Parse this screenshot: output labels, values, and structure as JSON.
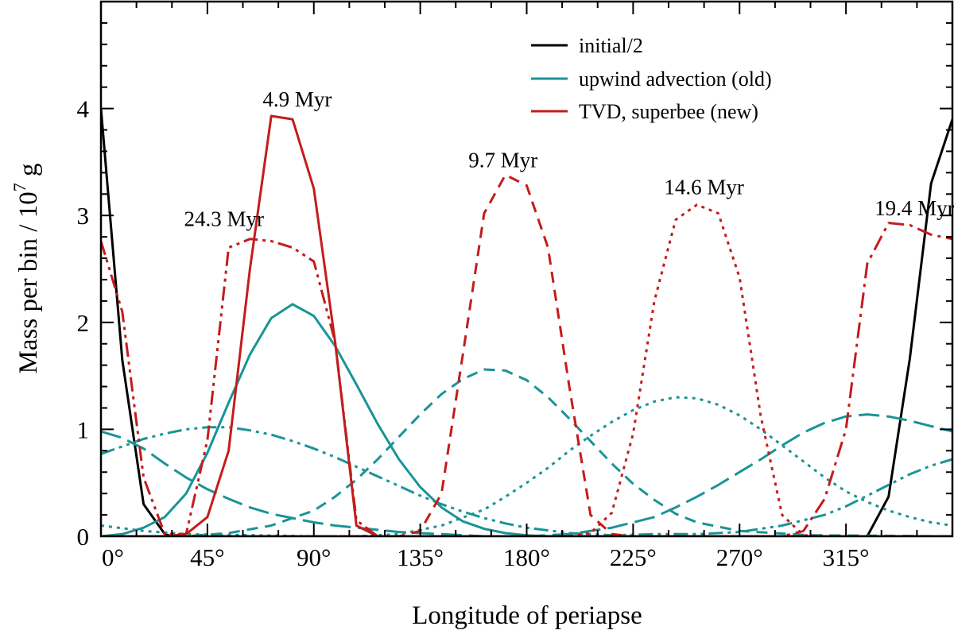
{
  "chart_data": {
    "type": "line",
    "xlabel": "Longitude of periapse",
    "ylabel": "Mass per bin / 10",
    "ylabel_exp": "7",
    "ylabel_unit": " g",
    "xlim": [
      0,
      360
    ],
    "ylim": [
      0,
      5
    ],
    "xticks": [
      0,
      45,
      90,
      135,
      180,
      225,
      270,
      315
    ],
    "xtick_labels": [
      "0°",
      "45°",
      "90°",
      "135°",
      "180°",
      "225°",
      "270°",
      "315°"
    ],
    "yticks": [
      0,
      1,
      2,
      3,
      4
    ],
    "ytick_labels": [
      "0",
      "1",
      "2",
      "3",
      "4"
    ],
    "legend": [
      {
        "label": "initial/2",
        "color": "#000000"
      },
      {
        "label": "upwind advection (old)",
        "color": "#1a9496"
      },
      {
        "label": "TVD, superbee (new)",
        "color": "#c41c1c"
      }
    ],
    "annotations": [
      {
        "text": "4.9 Myr",
        "x": 83,
        "y": 4.02
      },
      {
        "text": "9.7 Myr",
        "x": 170,
        "y": 3.45
      },
      {
        "text": "14.6 Myr",
        "x": 255,
        "y": 3.2
      },
      {
        "text": "19.4 Myr",
        "x": 344,
        "y": 3.0
      },
      {
        "text": "24.3 Myr",
        "x": 52,
        "y": 2.9
      }
    ],
    "series": [
      {
        "name": "initial/2 (start)",
        "group": "initial/2",
        "color": "#000000",
        "dash": "solid",
        "x": [
          0,
          9,
          18,
          27,
          30,
          36
        ],
        "y": [
          4.0,
          1.65,
          0.3,
          0.02,
          0,
          0
        ]
      },
      {
        "name": "initial/2 (end)",
        "group": "initial/2",
        "color": "#000000",
        "dash": "solid",
        "x": [
          315,
          324,
          333,
          342,
          351,
          360
        ],
        "y": [
          0,
          0,
          0.37,
          1.66,
          3.3,
          3.9
        ]
      },
      {
        "name": "upwind 4.9 Myr",
        "group": "upwind advection (old)",
        "color": "#1a9496",
        "dash": "solid",
        "x": [
          0,
          9,
          18,
          27,
          36,
          45,
          54,
          63,
          72,
          81,
          90,
          99,
          108,
          117,
          126,
          135,
          144,
          153,
          162,
          171,
          180,
          189,
          198,
          207,
          216,
          225
        ],
        "y": [
          0,
          0.02,
          0.08,
          0.18,
          0.4,
          0.78,
          1.25,
          1.7,
          2.04,
          2.17,
          2.06,
          1.78,
          1.42,
          1.05,
          0.72,
          0.46,
          0.27,
          0.14,
          0.07,
          0.03,
          0.01,
          0,
          0,
          0,
          0,
          0
        ]
      },
      {
        "name": "upwind 9.7 Myr",
        "group": "upwind advection (old)",
        "color": "#1a9496",
        "dash": "dashed",
        "x": [
          0,
          36,
          54,
          72,
          90,
          99,
          108,
          117,
          126,
          135,
          144,
          153,
          162,
          171,
          180,
          189,
          198,
          207,
          216,
          225,
          234,
          243,
          252,
          270,
          300,
          360
        ],
        "y": [
          0,
          0,
          0.03,
          0.1,
          0.24,
          0.37,
          0.53,
          0.72,
          0.93,
          1.14,
          1.33,
          1.47,
          1.56,
          1.55,
          1.46,
          1.3,
          1.1,
          0.89,
          0.68,
          0.49,
          0.34,
          0.21,
          0.13,
          0.05,
          0.01,
          0
        ]
      },
      {
        "name": "upwind 14.6 Myr",
        "group": "upwind advection (old)",
        "color": "#1a9496",
        "dash": "dotted",
        "x": [
          0,
          18,
          36,
          90,
          108,
          126,
          144,
          162,
          171,
          180,
          189,
          198,
          207,
          216,
          225,
          234,
          243,
          252,
          261,
          270,
          279,
          288,
          297,
          306,
          315,
          324,
          333,
          342,
          351,
          360
        ],
        "y": [
          0.1,
          0.05,
          0.02,
          0,
          0,
          0.02,
          0.1,
          0.25,
          0.37,
          0.5,
          0.64,
          0.8,
          0.94,
          1.07,
          1.18,
          1.26,
          1.3,
          1.29,
          1.23,
          1.13,
          1.0,
          0.85,
          0.7,
          0.55,
          0.42,
          0.32,
          0.24,
          0.18,
          0.13,
          0.1
        ]
      },
      {
        "name": "upwind 19.4 Myr",
        "group": "upwind advection (old)",
        "color": "#1a9496",
        "dash": "longdash",
        "x": [
          0,
          9,
          18,
          27,
          36,
          45,
          54,
          63,
          72,
          81,
          90,
          99,
          108,
          117,
          126,
          135,
          144,
          162,
          180,
          198,
          216,
          234,
          243,
          252,
          261,
          270,
          279,
          288,
          297,
          306,
          315,
          324,
          333,
          342,
          351,
          360
        ],
        "y": [
          0.98,
          0.92,
          0.82,
          0.68,
          0.55,
          0.44,
          0.35,
          0.27,
          0.21,
          0.17,
          0.13,
          0.1,
          0.08,
          0.06,
          0.04,
          0.03,
          0.02,
          0,
          0,
          0.02,
          0.08,
          0.18,
          0.27,
          0.37,
          0.48,
          0.6,
          0.72,
          0.85,
          0.97,
          1.06,
          1.12,
          1.14,
          1.12,
          1.08,
          1.03,
          0.98
        ]
      },
      {
        "name": "upwind 24.3 Myr",
        "group": "upwind advection (old)",
        "color": "#1a9496",
        "dash": "dashdotdot",
        "x": [
          0,
          9,
          18,
          27,
          36,
          45,
          54,
          63,
          72,
          81,
          90,
          99,
          108,
          117,
          126,
          135,
          144,
          153,
          162,
          171,
          180,
          198,
          216,
          234,
          252,
          270,
          288,
          306,
          315,
          324,
          333,
          342,
          351,
          360
        ],
        "y": [
          0.77,
          0.84,
          0.91,
          0.96,
          1.0,
          1.02,
          1.02,
          0.99,
          0.95,
          0.89,
          0.82,
          0.74,
          0.65,
          0.56,
          0.47,
          0.38,
          0.3,
          0.23,
          0.17,
          0.12,
          0.08,
          0.03,
          0.01,
          0.02,
          0.02,
          0.04,
          0.1,
          0.2,
          0.28,
          0.38,
          0.48,
          0.58,
          0.66,
          0.72
        ]
      },
      {
        "name": "TVD 4.9 Myr",
        "group": "TVD, superbee (new)",
        "color": "#c41c1c",
        "dash": "solid",
        "x": [
          0,
          27,
          36,
          45,
          54,
          63,
          72,
          81,
          90,
          99,
          108,
          117,
          126,
          135,
          360
        ],
        "y": [
          0,
          0,
          0.02,
          0.18,
          0.8,
          2.5,
          3.93,
          3.9,
          3.25,
          1.82,
          0.1,
          0,
          0,
          0,
          0
        ]
      },
      {
        "name": "TVD 9.7 Myr",
        "group": "TVD, superbee (new)",
        "color": "#c41c1c",
        "dash": "dashed",
        "x": [
          0,
          117,
          126,
          135,
          144,
          153,
          162,
          171,
          180,
          189,
          198,
          207,
          216,
          225,
          360
        ],
        "y": [
          0,
          0,
          0,
          0.05,
          0.4,
          1.7,
          3.02,
          3.38,
          3.28,
          2.7,
          1.4,
          0.2,
          0.02,
          0,
          0
        ]
      },
      {
        "name": "TVD 14.6 Myr",
        "group": "TVD, superbee (new)",
        "color": "#c41c1c",
        "dash": "dotted",
        "x": [
          0,
          198,
          207,
          216,
          225,
          234,
          243,
          252,
          261,
          270,
          279,
          288,
          297,
          306,
          315,
          360
        ],
        "y": [
          0,
          0,
          0.03,
          0.22,
          0.96,
          2.2,
          2.96,
          3.1,
          3.02,
          2.42,
          1.12,
          0.2,
          0.01,
          0,
          0,
          0
        ]
      },
      {
        "name": "TVD 19.4 Myr",
        "group": "TVD, superbee (new)",
        "color": "#c41c1c",
        "dash": "dashdot",
        "x": [
          0,
          288,
          297,
          306,
          315,
          324,
          333,
          342,
          351,
          360
        ],
        "y": [
          0,
          0,
          0.05,
          0.35,
          1.0,
          2.55,
          2.93,
          2.91,
          2.82,
          2.78
        ]
      },
      {
        "name": "TVD 24.3 Myr",
        "group": "TVD, superbee (new)",
        "color": "#c41c1c",
        "dash": "dashdotdot",
        "x": [
          0,
          9,
          18,
          27,
          36,
          45,
          54,
          63,
          72,
          81,
          90,
          99,
          108,
          117,
          126,
          135,
          360
        ],
        "y": [
          2.76,
          2.1,
          0.55,
          0.02,
          0.02,
          0.9,
          2.7,
          2.78,
          2.76,
          2.7,
          2.57,
          1.82,
          0.15,
          0,
          0,
          0,
          0
        ]
      }
    ]
  }
}
